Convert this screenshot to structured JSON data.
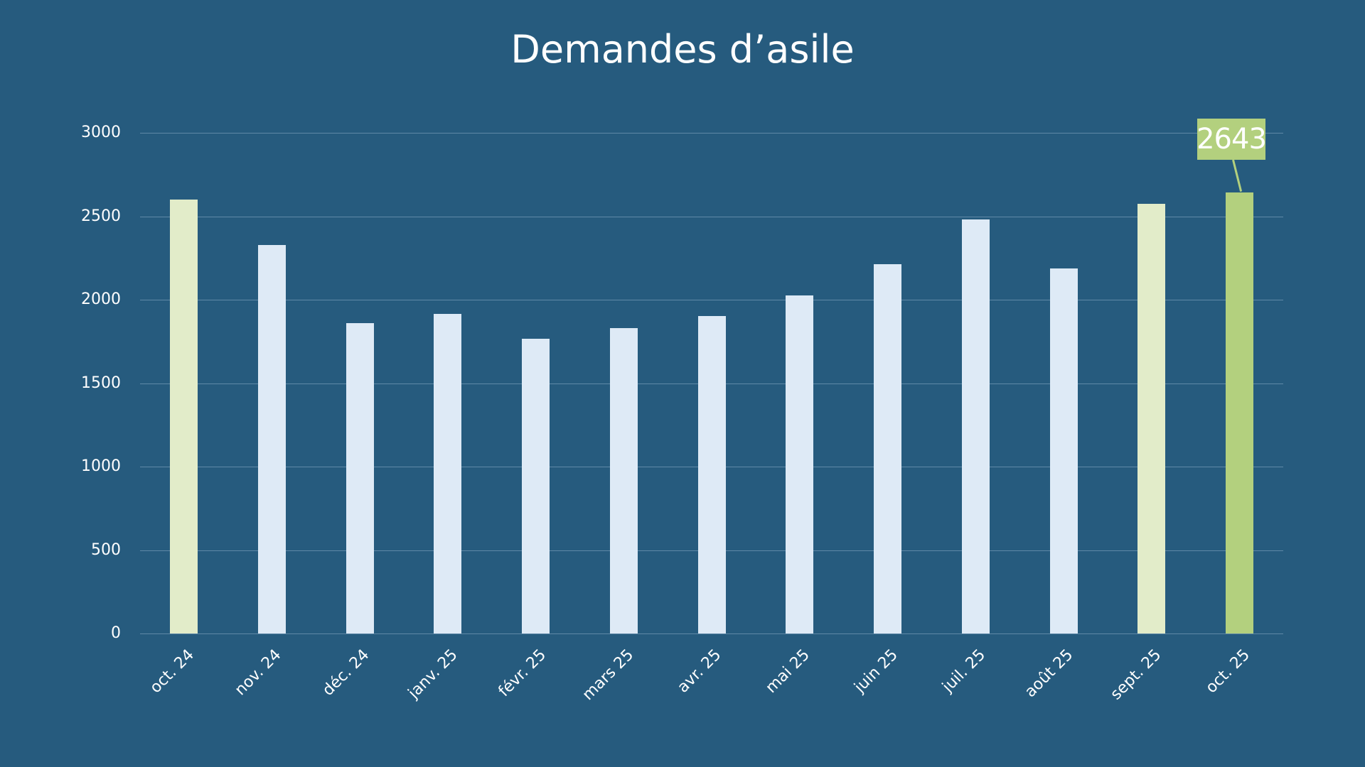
{
  "title": "Demandes d’asile",
  "colors": {
    "background": "#265b7e",
    "bar_default": "#deeaf6",
    "bar_highlight_light": "#e2ecc9",
    "bar_highlight_current": "#b3d07e",
    "gridline": "#5f89a7",
    "text": "#ffffff"
  },
  "y_axis": {
    "ticks": [
      "0",
      "500",
      "1000",
      "1500",
      "2000",
      "2500",
      "3000"
    ]
  },
  "callout": {
    "label": "2643"
  },
  "chart_data": {
    "type": "bar",
    "title": "Demandes d’asile",
    "xlabel": "",
    "ylabel": "",
    "categories": [
      "oct. 24",
      "nov. 24",
      "déc. 24",
      "janv. 25",
      "févr. 25",
      "mars 25",
      "avr. 25",
      "mai 25",
      "juin 25",
      "juil. 25",
      "août 25",
      "sept. 25",
      "oct. 25"
    ],
    "values": [
      2600,
      2328,
      1860,
      1913,
      1764,
      1830,
      1901,
      2027,
      2214,
      2482,
      2186,
      2573,
      2643
    ],
    "bar_colors": [
      "#e2ecc9",
      "#deeaf6",
      "#deeaf6",
      "#deeaf6",
      "#deeaf6",
      "#deeaf6",
      "#deeaf6",
      "#deeaf6",
      "#deeaf6",
      "#deeaf6",
      "#deeaf6",
      "#e2ecc9",
      "#b3d07e"
    ],
    "annotations": [
      {
        "category": "oct. 25",
        "text": "2643"
      }
    ],
    "ylim": [
      0,
      3000
    ],
    "yticks": [
      0,
      500,
      1000,
      1500,
      2000,
      2500,
      3000
    ],
    "grid": true,
    "legend": null
  }
}
